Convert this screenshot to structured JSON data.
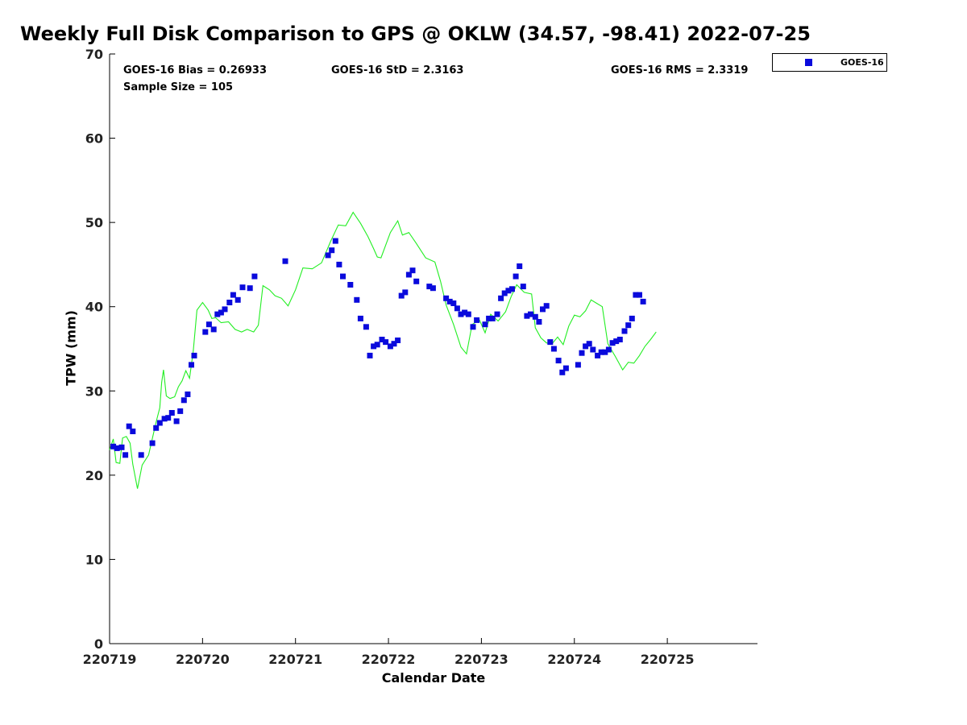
{
  "chart_data": {
    "type": "scatter",
    "title": "Weekly Full Disk Comparison to GPS @ OKLW (34.57, -98.41) 2022-07-25",
    "xlabel": "Calendar Date",
    "ylabel": "TPW (mm)",
    "xlim": [
      0,
      6.97
    ],
    "ylim": [
      0,
      70
    ],
    "grid": false,
    "legend_placement": "top-right (outside)",
    "x_tick_labels": [
      "220719",
      "220720",
      "220721",
      "220722",
      "220723",
      "220724",
      "220725"
    ],
    "y_ticks": [
      0,
      10,
      20,
      30,
      40,
      50,
      60,
      70
    ],
    "stats": {
      "bias": "GOES-16 Bias = 0.26933",
      "std": "GOES-16 StD = 2.3163",
      "rms": "GOES-16 RMS = 2.3319",
      "sample": "Sample Size = 105"
    },
    "legend": [
      {
        "label": "GOES-16",
        "marker": "square",
        "color": "#0a0adc"
      }
    ],
    "series": [
      {
        "marker": "square",
        "color": "#0a0adc",
        "x": [
          0.04,
          0.08,
          0.13,
          0.17,
          0.21,
          0.25,
          0.34,
          0.46,
          0.5,
          0.54,
          0.59,
          0.63,
          0.67,
          0.72,
          0.76,
          0.8,
          0.84,
          0.88,
          0.91,
          1.03,
          1.07,
          1.12,
          1.16,
          1.2,
          1.24,
          1.29,
          1.33,
          1.38,
          1.43,
          1.51,
          1.56,
          1.89,
          2.35,
          2.39,
          2.43,
          2.47,
          2.51,
          2.59,
          2.66,
          2.7,
          2.76,
          2.8,
          2.84,
          2.88,
          2.93,
          2.97,
          3.02,
          3.06,
          3.1,
          3.14,
          3.18,
          3.22,
          3.26,
          3.3,
          3.44,
          3.48,
          3.62,
          3.66,
          3.7,
          3.74,
          3.78,
          3.82,
          3.86,
          3.91,
          3.95,
          4.04,
          4.08,
          4.12,
          4.17,
          4.21,
          4.25,
          4.29,
          4.33,
          4.37,
          4.41,
          4.45,
          4.49,
          4.53,
          4.58,
          4.62,
          4.66,
          4.7,
          4.74,
          4.78,
          4.83,
          4.87,
          4.91,
          5.04,
          5.08,
          5.12,
          5.16,
          5.2,
          5.25,
          5.29,
          5.33,
          5.37,
          5.41,
          5.45,
          5.49,
          5.54,
          5.58,
          5.62,
          5.66,
          5.7,
          5.74
        ],
        "y": [
          23.4,
          23.2,
          23.3,
          22.4,
          25.8,
          25.2,
          22.4,
          23.8,
          25.6,
          26.2,
          26.7,
          26.8,
          27.4,
          26.4,
          27.6,
          28.9,
          29.6,
          33.1,
          34.2,
          37.0,
          37.9,
          37.3,
          39.1,
          39.3,
          39.7,
          40.5,
          41.4,
          40.8,
          42.3,
          42.2,
          43.6,
          45.4,
          46.1,
          46.7,
          47.8,
          45.0,
          43.6,
          42.6,
          40.8,
          38.6,
          37.6,
          34.2,
          35.3,
          35.5,
          36.1,
          35.8,
          35.3,
          35.6,
          36.0,
          41.3,
          41.7,
          43.8,
          44.3,
          43.0,
          42.4,
          42.2,
          41.0,
          40.6,
          40.4,
          39.8,
          39.1,
          39.3,
          39.1,
          37.6,
          38.4,
          37.9,
          38.6,
          38.6,
          39.1,
          41.0,
          41.6,
          41.9,
          42.1,
          43.6,
          44.8,
          42.4,
          38.9,
          39.1,
          38.8,
          38.2,
          39.7,
          40.1,
          35.8,
          35.0,
          33.6,
          32.2,
          32.7,
          33.1,
          34.5,
          35.3,
          35.6,
          34.9,
          34.2,
          34.6,
          34.6,
          34.9,
          35.7,
          35.9,
          36.1,
          37.1,
          37.8,
          38.6,
          41.4,
          41.4,
          40.6
        ]
      },
      {
        "marker": "line",
        "color": "#22ee22",
        "x": [
          0.0,
          0.04,
          0.07,
          0.11,
          0.14,
          0.18,
          0.22,
          0.25,
          0.3,
          0.35,
          0.42,
          0.5,
          0.54,
          0.56,
          0.58,
          0.61,
          0.65,
          0.7,
          0.74,
          0.78,
          0.82,
          0.86,
          0.9,
          0.94,
          1.0,
          1.06,
          1.1,
          1.14,
          1.2,
          1.28,
          1.35,
          1.42,
          1.48,
          1.55,
          1.6,
          1.65,
          1.72,
          1.78,
          1.85,
          1.92,
          2.0,
          2.08,
          2.18,
          2.28,
          2.38,
          2.46,
          2.54,
          2.62,
          2.7,
          2.78,
          2.84,
          2.88,
          2.92,
          3.02,
          3.1,
          3.15,
          3.22,
          3.3,
          3.4,
          3.5,
          3.56,
          3.62,
          3.7,
          3.78,
          3.84,
          3.9,
          3.98,
          4.04,
          4.1,
          4.18,
          4.26,
          4.32,
          4.38,
          4.46,
          4.54,
          4.58,
          4.64,
          4.7,
          4.76,
          4.82,
          4.88,
          4.94,
          5.0,
          5.06,
          5.12,
          5.18,
          5.24,
          5.3,
          5.36,
          5.44,
          5.52,
          5.58,
          5.64,
          5.7,
          5.76,
          5.82,
          5.88
        ],
        "y": [
          23.0,
          24.3,
          21.5,
          21.4,
          24.4,
          24.6,
          23.8,
          21.3,
          18.4,
          21.2,
          22.4,
          26.3,
          28.0,
          31.0,
          32.5,
          29.4,
          29.1,
          29.3,
          30.5,
          31.2,
          32.4,
          31.5,
          34.7,
          39.6,
          40.5,
          39.6,
          38.6,
          38.7,
          38.1,
          38.2,
          37.3,
          37.0,
          37.3,
          37.0,
          37.8,
          42.5,
          42.0,
          41.3,
          41.0,
          40.1,
          42.0,
          44.6,
          44.5,
          45.2,
          47.8,
          49.7,
          49.6,
          51.2,
          49.9,
          48.3,
          46.9,
          45.9,
          45.8,
          48.8,
          50.2,
          48.5,
          48.8,
          47.5,
          45.8,
          45.3,
          43.0,
          40.2,
          37.9,
          35.2,
          34.4,
          37.9,
          38.4,
          36.9,
          39.1,
          38.3,
          39.4,
          41.2,
          42.6,
          41.7,
          41.5,
          37.5,
          36.3,
          35.7,
          35.6,
          36.4,
          35.5,
          37.7,
          39.0,
          38.8,
          39.5,
          40.8,
          40.4,
          40.0,
          35.6,
          34.1,
          32.5,
          33.4,
          33.3,
          34.2,
          35.3,
          36.1,
          37.0
        ]
      }
    ]
  }
}
